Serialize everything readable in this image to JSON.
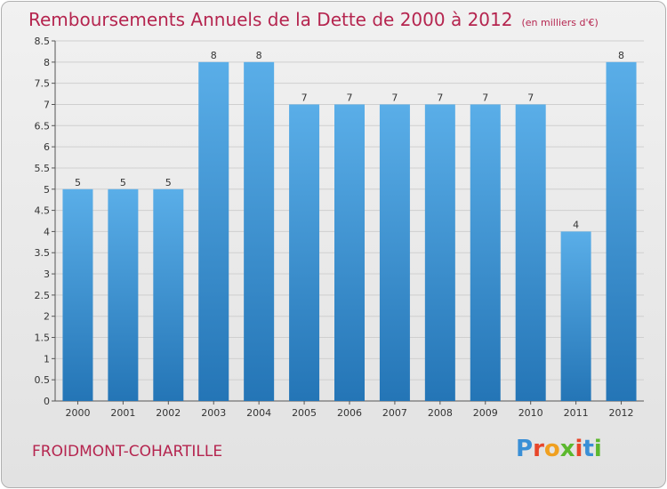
{
  "header": {
    "title": "Remboursements Annuels de la Dette de 2000 à 2012",
    "unit": "(en milliers d'€)"
  },
  "footer": {
    "city": "FROIDMONT-COHARTILLE",
    "logo": "Proxiti"
  },
  "colors": {
    "bar_top": "#5aaee8",
    "bar_bottom": "#2475b6",
    "title": "#b5254f",
    "grid": "#cfcfcf"
  },
  "chart_data": {
    "type": "bar",
    "title": "Remboursements Annuels de la Dette de 2000 à 2012",
    "subtitle": "(en milliers d'€)",
    "xlabel": "",
    "ylabel": "",
    "categories": [
      "2000",
      "2001",
      "2002",
      "2003",
      "2004",
      "2005",
      "2006",
      "2007",
      "2008",
      "2009",
      "2010",
      "2011",
      "2012"
    ],
    "values": [
      5,
      5,
      5,
      8,
      8,
      7,
      7,
      7,
      7,
      7,
      7,
      4,
      8
    ],
    "ylim": [
      0,
      8.5
    ],
    "yticks": [
      "0",
      "0.5",
      "1",
      "1.5",
      "2",
      "2.5",
      "3",
      "3.5",
      "4",
      "4.5",
      "5",
      "5.5",
      "6",
      "6.5",
      "7",
      "7.5",
      "8",
      "8.5"
    ],
    "grid": true
  }
}
